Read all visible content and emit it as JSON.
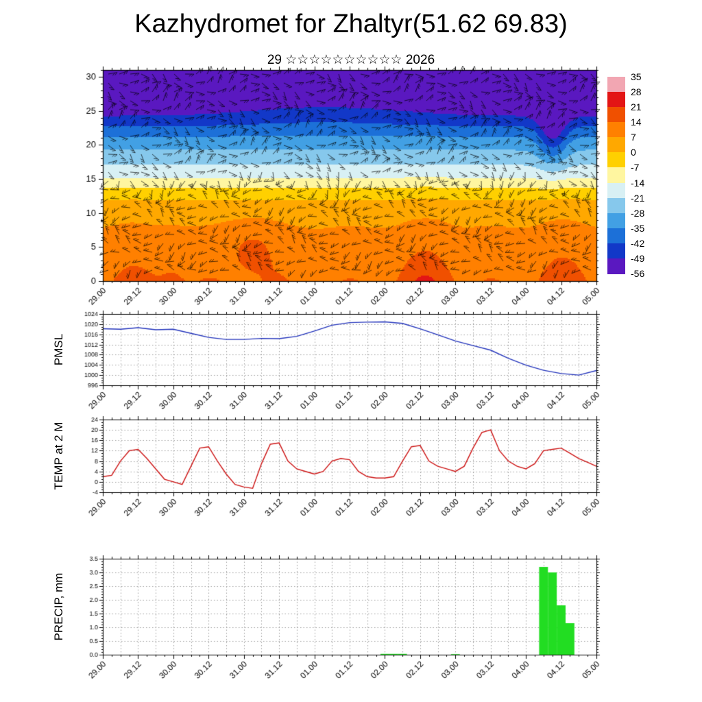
{
  "title": "Kazhydromet for Zhaltyr(51.62 69.83)",
  "subtitle": "29 ☆☆☆☆☆☆☆☆☆☆ 2026",
  "x_axis": {
    "labels": [
      "29.00",
      "29.12",
      "30.00",
      "30.12",
      "31.00",
      "31.12",
      "01.00",
      "01.12",
      "02.00",
      "02.12",
      "03.00",
      "03.12",
      "04.00",
      "04.12",
      "05.00"
    ],
    "hours_total": 168,
    "label_step_hours": 12,
    "minor_tick_hours": 3,
    "grid_step_hours": 6
  },
  "chart_data": [
    {
      "type": "heatmap",
      "name": "upper-air-temperature-cross-section",
      "overlay": "wind-barbs",
      "ylim": [
        0,
        31
      ],
      "y_ticks": [
        0,
        5,
        10,
        15,
        20,
        25,
        30
      ],
      "colorbar_levels": [
        35,
        28,
        21,
        14,
        7,
        0,
        -7,
        -14,
        -21,
        -28,
        -35,
        -42,
        -49,
        -56
      ],
      "colorbar_colors": [
        "#f2a6b2",
        "#e31515",
        "#f05000",
        "#ff8000",
        "#ffa800",
        "#ffd000",
        "#fff6a0",
        "#d8f0f4",
        "#86c8ec",
        "#42a0e4",
        "#1c70d8",
        "#1238c8",
        "#5a18c0"
      ],
      "profile_heights": [
        0,
        3,
        6,
        9,
        12,
        14,
        15,
        16,
        18,
        20,
        22,
        24,
        26,
        31
      ],
      "profile_temps": [
        13,
        11,
        9,
        6,
        0,
        -8,
        -13,
        -17,
        -24,
        -30,
        -38,
        -48,
        -54,
        -58
      ],
      "diurnal_amp": 1.5,
      "anomalies": [
        {
          "t": 0.655,
          "sigma": 0.05,
          "amp": 9,
          "hscale": 5
        },
        {
          "t": 0.93,
          "sigma": 0.05,
          "amp": 5,
          "hscale": 6
        },
        {
          "t": 0.05,
          "sigma": 0.05,
          "amp": 3,
          "hscale": 5
        },
        {
          "t": 0.3,
          "sigma": 0.05,
          "amp": 6,
          "hcenter": 5,
          "hsigma": 4
        },
        {
          "t": 0.14,
          "sigma": 0.03,
          "amp": 4,
          "hscale": 4
        },
        {
          "t": 0.91,
          "sigma": 0.03,
          "amp": -16,
          "hcenter": 22,
          "hsigma": 5
        },
        {
          "t": 0.45,
          "sigma": 0.2,
          "amp": 4,
          "hcenter": 25,
          "hsigma": 3
        }
      ]
    },
    {
      "type": "line",
      "name": "pmsl",
      "ylabel": "PMSL",
      "color": "#2233bb",
      "ylim": [
        996,
        1024
      ],
      "y_ticks": [
        996,
        1000,
        1004,
        1008,
        1012,
        1016,
        1020,
        1024
      ],
      "y_minor_step": 1,
      "x_step_hours": 6,
      "values": [
        1018.2,
        1018.0,
        1018.6,
        1017.8,
        1018.0,
        1016.4,
        1014.8,
        1014.0,
        1014.0,
        1014.4,
        1014.3,
        1015.2,
        1017.3,
        1019.6,
        1020.6,
        1020.8,
        1020.9,
        1020.3,
        1018.2,
        1015.8,
        1013.4,
        1011.6,
        1009.8,
        1006.6,
        1003.9,
        1001.9,
        1000.6,
        1000.0,
        1001.8
      ]
    },
    {
      "type": "line",
      "name": "temp-2m",
      "ylabel": "TEMP at 2 M",
      "color": "#cc1111",
      "ylim": [
        -4,
        24
      ],
      "y_ticks": [
        -4,
        0,
        4,
        8,
        12,
        16,
        20,
        24
      ],
      "y_minor_step": 1,
      "x_step_hours": 3,
      "values": [
        2,
        2.5,
        8,
        12,
        12.5,
        9,
        5,
        1,
        0,
        -1,
        6,
        13,
        13.5,
        8,
        3,
        -1,
        -2,
        -2.5,
        7,
        14.5,
        15,
        8,
        5,
        4,
        3,
        4,
        8,
        9,
        8.5,
        4,
        2,
        1.5,
        1.5,
        2,
        8,
        13.5,
        14,
        8,
        6,
        5,
        4,
        6,
        13,
        19,
        20,
        12,
        8,
        6,
        5,
        7,
        12,
        12.5,
        13,
        11,
        9,
        7.5,
        6
      ]
    },
    {
      "type": "bar",
      "name": "precip",
      "ylabel": "PRECIP, mm",
      "color": "#22dd22",
      "ylim": [
        0,
        3.5
      ],
      "y_ticks": [
        0.0,
        0.5,
        1.0,
        1.5,
        2.0,
        2.5,
        3.0,
        3.5
      ],
      "y_minor_step": 0.1,
      "x_step_hours": 3,
      "values": [
        0,
        0,
        0,
        0,
        0,
        0,
        0,
        0,
        0,
        0,
        0,
        0,
        0,
        0,
        0,
        0,
        0,
        0,
        0,
        0,
        0,
        0,
        0,
        0,
        0,
        0,
        0,
        0,
        0,
        0,
        0,
        0,
        0.03,
        0.03,
        0.03,
        0,
        0,
        0,
        0,
        0,
        0.02,
        0,
        0,
        0,
        0,
        0,
        0,
        0,
        0,
        0,
        3.2,
        3.0,
        1.8,
        1.15,
        0,
        0,
        0
      ]
    }
  ]
}
